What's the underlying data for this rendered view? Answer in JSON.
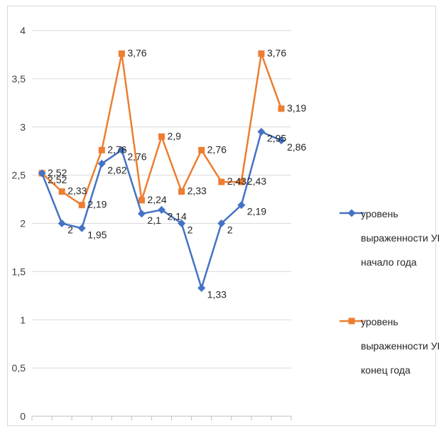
{
  "chart_data": {
    "type": "line",
    "title": "",
    "xlabel": "",
    "ylabel": "",
    "ylim": [
      0,
      4
    ],
    "yticks": [
      "0",
      "0,5",
      "1",
      "1,5",
      "2",
      "2,5",
      "3",
      "3,5",
      "4"
    ],
    "x": [
      1,
      2,
      3,
      4,
      5,
      6,
      7,
      8,
      9,
      10,
      11,
      12,
      13
    ],
    "grid": true,
    "legend_position": "right",
    "series": [
      {
        "name": "уровень выраженности УВК начало года",
        "color": "#4472c4",
        "marker": "diamond",
        "values": [
          2.52,
          2.0,
          1.95,
          2.62,
          2.76,
          2.1,
          2.14,
          2.0,
          1.33,
          2.0,
          2.19,
          2.95,
          2.86
        ],
        "labels": [
          "2,52",
          "2",
          "1,95",
          "2,62",
          "2,76",
          "2,1",
          "2,14",
          "2",
          "1,33",
          "2",
          "2,19",
          "2,95",
          "2,86"
        ]
      },
      {
        "name": "уровень выраженности УВК конец года",
        "color": "#ed7d31",
        "marker": "square",
        "values": [
          2.52,
          2.33,
          2.19,
          2.76,
          3.76,
          2.24,
          2.9,
          2.33,
          2.76,
          2.43,
          2.43,
          3.76,
          3.19
        ],
        "labels": [
          "2,52",
          "2,33",
          "2,19",
          "2,76",
          "3,76",
          "2,24",
          "2,9",
          "2,33",
          "2,76",
          "2,43",
          "2,43",
          "3,76",
          "3,19"
        ]
      }
    ],
    "legend": {
      "entries": [
        {
          "lines": [
            "уровень",
            "выраженности УВК",
            "начало года"
          ]
        },
        {
          "lines": [
            "уровень",
            "выраженности УВК",
            "конец года"
          ]
        }
      ]
    }
  }
}
